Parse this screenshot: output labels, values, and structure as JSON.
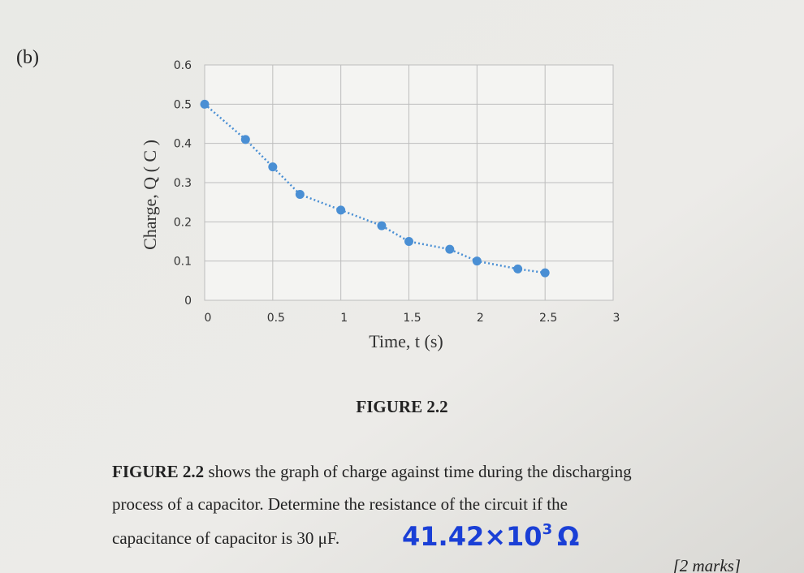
{
  "part_label": "(b)",
  "chart_data": {
    "type": "line",
    "x_label": "Time, t (s)",
    "y_label": "Charge, Q ( C )",
    "x": [
      0,
      0.3,
      0.5,
      0.7,
      1.0,
      1.3,
      1.5,
      1.8,
      2.0,
      2.3,
      2.5
    ],
    "series": [
      {
        "color": "#4a8fd4",
        "values": [
          0.5,
          0.41,
          0.34,
          0.27,
          0.23,
          0.19,
          0.15,
          0.13,
          0.1,
          0.08,
          0.07
        ]
      }
    ],
    "xlim": [
      0,
      3
    ],
    "ylim": [
      0,
      0.6
    ],
    "xticks": [
      0,
      0.5,
      1,
      1.5,
      2,
      2.5,
      3
    ],
    "yticks": [
      0,
      0.1,
      0.2,
      0.3,
      0.4,
      0.5,
      0.6
    ],
    "grid": true,
    "line_style": "dotted"
  },
  "figure_caption": "FIGURE 2.2",
  "question": {
    "reference": "FIGURE 2.2",
    "lines": [
      " shows the graph of charge against time during the discharging",
      "process of a capacitor. Determine the resistance of the circuit if the",
      "capacitance of capacitor is 30 μF."
    ],
    "marks": "[2 marks]"
  },
  "handwritten_answer": {
    "base": "41.42×10",
    "exponent": "3",
    "unit": "Ω"
  }
}
